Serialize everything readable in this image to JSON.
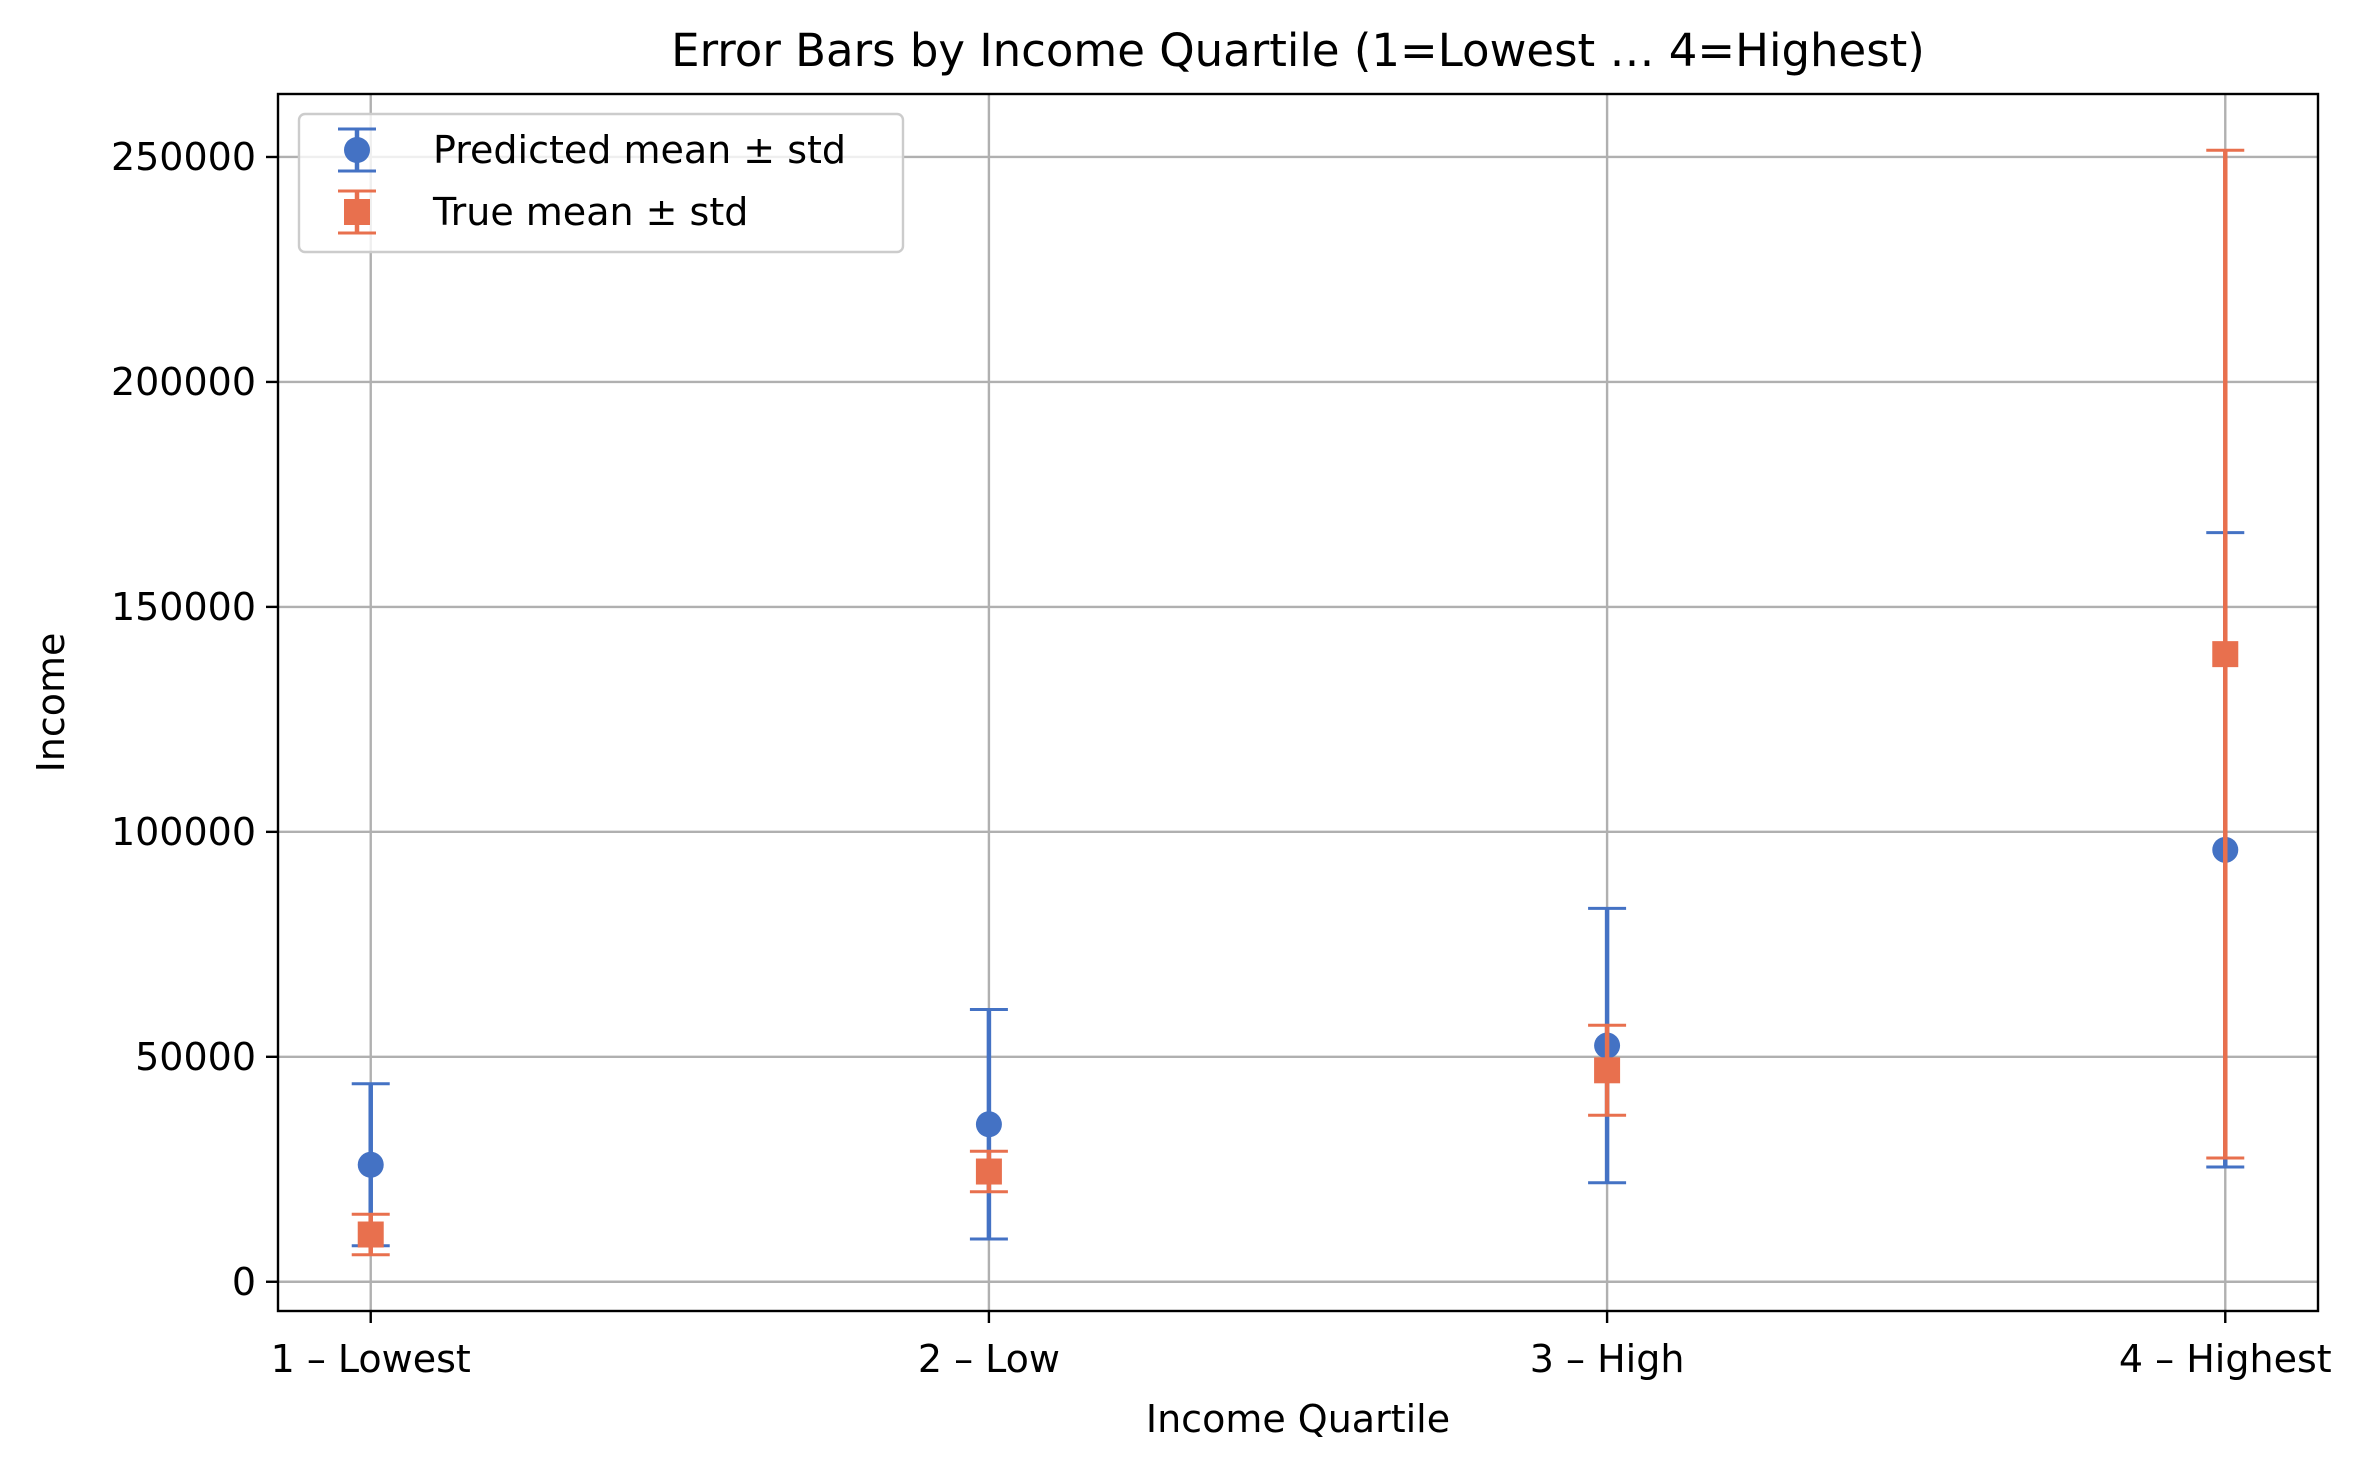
{
  "chart_data": {
    "type": "scatter",
    "title": "Error Bars by Income Quartile (1=Lowest … 4=Highest)",
    "xlabel": "Income Quartile",
    "ylabel": "Income",
    "categories": [
      "1 – Lowest",
      "2 – Low",
      "3 – High",
      "4 – Highest"
    ],
    "ylim": [
      -6500,
      264000
    ],
    "yticks": [
      0,
      50000,
      100000,
      150000,
      200000,
      250000
    ],
    "ytick_labels": [
      "0",
      "50000",
      "100000",
      "150000",
      "200000",
      "250000"
    ],
    "grid": true,
    "legend_position": "upper-left",
    "series": [
      {
        "name": "Predicted mean ± std",
        "marker": "circle",
        "color": "#4472c4",
        "means": [
          26000,
          35000,
          52500,
          96000
        ],
        "stds": [
          18000,
          25500,
          30500,
          70500
        ]
      },
      {
        "name": "True mean ± std",
        "marker": "square",
        "color": "#e8704e",
        "means": [
          10500,
          24500,
          47000,
          139500
        ],
        "stds": [
          4500,
          4500,
          10000,
          112000
        ]
      }
    ]
  }
}
